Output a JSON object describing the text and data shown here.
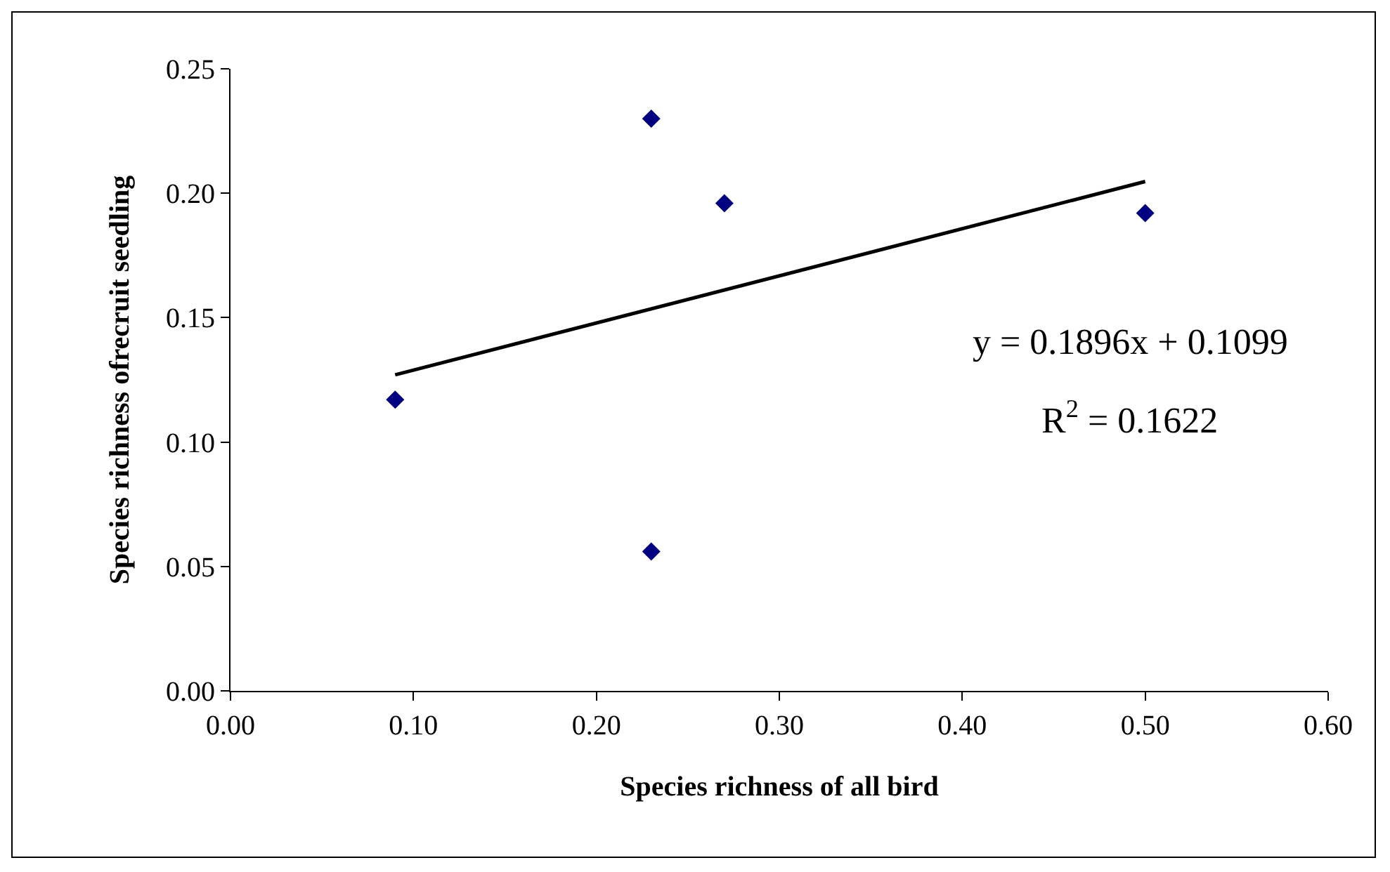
{
  "chart_data": {
    "type": "scatter",
    "xlabel": "Species richness of all bird",
    "ylabel": "Species richness ofrecruit seedling",
    "marker": "diamond",
    "series": [
      {
        "color": "#000080",
        "x": [
          0.09,
          0.23,
          0.27,
          0.5,
          0.23
        ],
        "values": [
          0.117,
          0.23,
          0.196,
          0.192,
          0.056
        ]
      },
      {
        "type": "line",
        "color": "#000000",
        "marker": "none",
        "line_style": "solid",
        "x": [
          0.09,
          0.5
        ],
        "values": [
          0.127,
          0.2047
        ]
      }
    ],
    "annotations": [
      "y = 0.1896x + 0.1099",
      "R$^{2}$ = 0.1622"
    ],
    "xlim": [
      0,
      0.6
    ],
    "ylim": [
      0,
      0.25
    ],
    "xticks": [
      {
        "value": 0,
        "label": "0.00"
      },
      {
        "value": 0.1,
        "label": "0.10"
      },
      {
        "value": 0.2,
        "label": "0.20"
      },
      {
        "value": 0.3,
        "label": "0.30"
      },
      {
        "value": 0.4,
        "label": "0.40"
      },
      {
        "value": 0.5,
        "label": "0.50"
      },
      {
        "value": 0.6,
        "label": "0.60"
      }
    ],
    "yticks": [
      {
        "value": 0,
        "label": "0.00"
      },
      {
        "value": 0.05,
        "label": "0.05"
      },
      {
        "value": 0.1,
        "label": "0.10"
      },
      {
        "value": 0.15,
        "label": "0.15"
      },
      {
        "value": 0.2,
        "label": "0.20"
      },
      {
        "value": 0.25,
        "label": "0.25"
      }
    ],
    "grid": false
  }
}
